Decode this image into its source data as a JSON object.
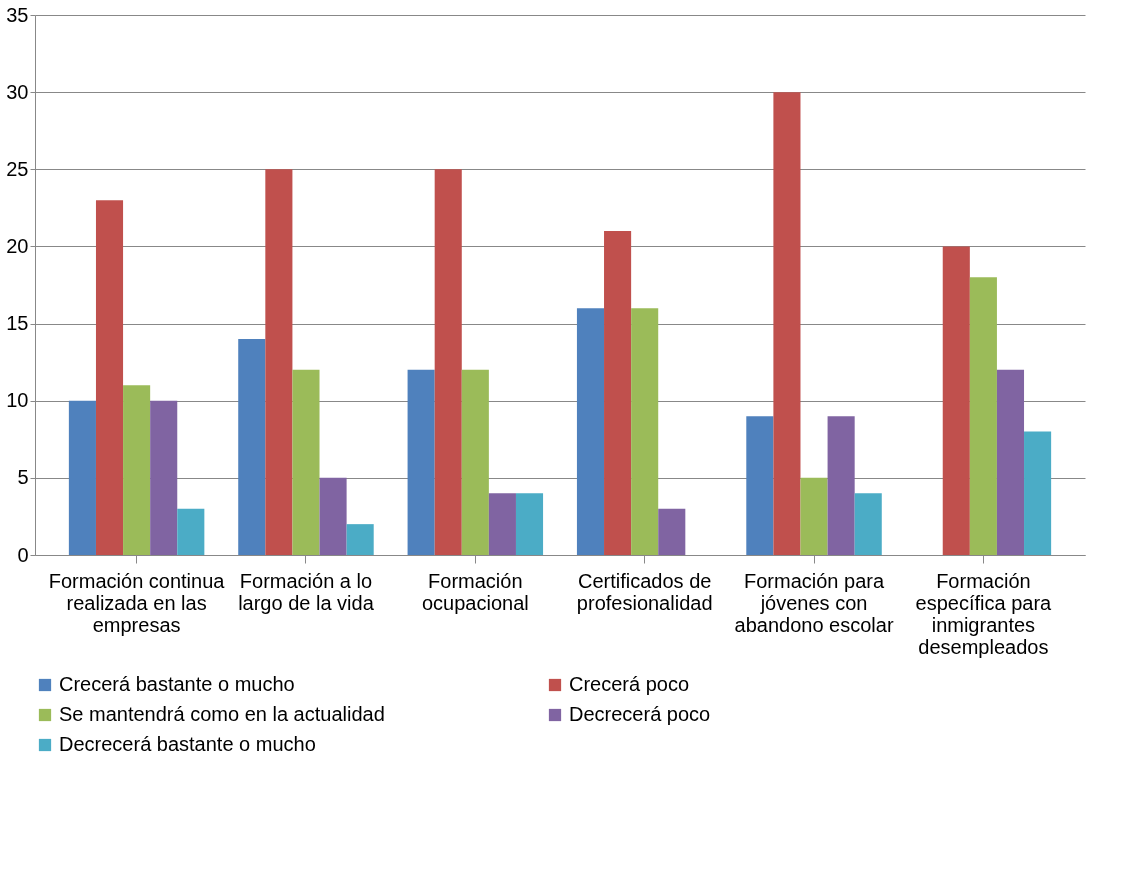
{
  "chart_data": {
    "type": "bar",
    "categories": [
      "Formación continua realizada en las empresas",
      "Formación  a lo largo de la vida",
      "Formación ocupacional",
      "Certificados de profesionalidad",
      "Formación para jóvenes con abandono escolar",
      "Formación específica para inmigrantes desempleados"
    ],
    "series": [
      {
        "name": "Crecerá bastante o mucho",
        "color": "#4f81bd",
        "values": [
          10,
          14,
          12,
          16,
          9,
          0
        ]
      },
      {
        "name": "Crecerá poco",
        "color": "#c0504d",
        "values": [
          23,
          25,
          25,
          21,
          30,
          20
        ]
      },
      {
        "name": "Se mantendrá como en la actualidad",
        "color": "#9bbb59",
        "values": [
          11,
          12,
          12,
          16,
          5,
          18
        ]
      },
      {
        "name": "Decrecerá poco",
        "color": "#8064a2",
        "values": [
          10,
          5,
          4,
          3,
          9,
          12
        ]
      },
      {
        "name": "Decrecerá bastante o mucho",
        "color": "#4bacc6",
        "values": [
          3,
          2,
          4,
          0,
          4,
          8
        ]
      }
    ],
    "ylim": [
      0,
      35
    ],
    "yticks": [
      0,
      5,
      10,
      15,
      20,
      25,
      30,
      35
    ],
    "grid": "y",
    "legend": "bottom"
  }
}
